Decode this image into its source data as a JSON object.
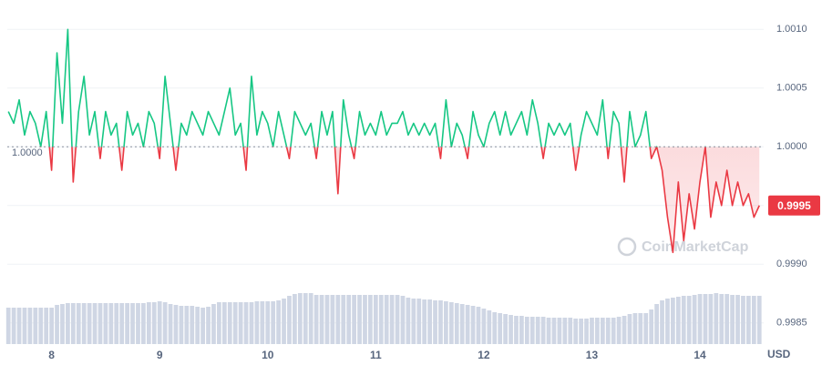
{
  "chart_data": {
    "type": "line",
    "x": [
      7.6,
      7.65,
      7.7,
      7.75,
      7.8,
      7.85,
      7.9,
      7.95,
      8.0,
      8.05,
      8.1,
      8.15,
      8.2,
      8.25,
      8.3,
      8.35,
      8.4,
      8.45,
      8.5,
      8.55,
      8.6,
      8.65,
      8.7,
      8.75,
      8.8,
      8.85,
      8.9,
      8.95,
      9.0,
      9.05,
      9.1,
      9.15,
      9.2,
      9.25,
      9.3,
      9.35,
      9.4,
      9.45,
      9.5,
      9.55,
      9.6,
      9.65,
      9.7,
      9.75,
      9.8,
      9.85,
      9.9,
      9.95,
      10.0,
      10.05,
      10.1,
      10.15,
      10.2,
      10.25,
      10.3,
      10.35,
      10.4,
      10.45,
      10.5,
      10.55,
      10.6,
      10.65,
      10.7,
      10.75,
      10.8,
      10.85,
      10.9,
      10.95,
      11.0,
      11.05,
      11.1,
      11.15,
      11.2,
      11.25,
      11.3,
      11.35,
      11.4,
      11.45,
      11.5,
      11.55,
      11.6,
      11.65,
      11.7,
      11.75,
      11.8,
      11.85,
      11.9,
      11.95,
      12.0,
      12.05,
      12.1,
      12.15,
      12.2,
      12.25,
      12.3,
      12.35,
      12.4,
      12.45,
      12.5,
      12.55,
      12.6,
      12.65,
      12.7,
      12.75,
      12.8,
      12.85,
      12.9,
      12.95,
      13.0,
      13.05,
      13.1,
      13.15,
      13.2,
      13.25,
      13.3,
      13.35,
      13.4,
      13.45,
      13.5,
      13.55,
      13.6,
      13.65,
      13.7,
      13.75,
      13.8,
      13.85,
      13.9,
      13.95,
      14.0,
      14.05,
      14.1,
      14.15,
      14.2,
      14.25,
      14.3,
      14.35,
      14.4,
      14.45,
      14.5,
      14.55
    ],
    "values": [
      1.0003,
      1.0002,
      1.0004,
      1.0001,
      1.0003,
      1.0002,
      1.0,
      1.0003,
      0.9998,
      1.0008,
      1.0002,
      1.001,
      0.9997,
      1.0003,
      1.0006,
      1.0001,
      1.0003,
      0.9999,
      1.0003,
      1.0001,
      1.0002,
      0.9998,
      1.0003,
      1.0001,
      1.0002,
      1.0,
      1.0003,
      1.0002,
      0.9999,
      1.0006,
      1.0002,
      0.9998,
      1.0002,
      1.0001,
      1.0003,
      1.0002,
      1.0001,
      1.0003,
      1.0002,
      1.0001,
      1.0003,
      1.0005,
      1.0001,
      1.0002,
      0.9998,
      1.0006,
      1.0001,
      1.0003,
      1.0002,
      1.0,
      1.0003,
      1.0001,
      0.9999,
      1.0003,
      1.0002,
      1.0001,
      1.0002,
      0.9999,
      1.0003,
      1.0001,
      1.0003,
      0.9996,
      1.0004,
      1.0001,
      0.9999,
      1.0003,
      1.0001,
      1.0002,
      1.0001,
      1.0003,
      1.0001,
      1.0002,
      1.0002,
      1.0003,
      1.0001,
      1.0002,
      1.0001,
      1.0002,
      1.0001,
      1.0002,
      0.9999,
      1.0004,
      1.0,
      1.0002,
      1.0001,
      0.9999,
      1.0003,
      1.0001,
      1.0,
      1.0002,
      1.0003,
      1.0001,
      1.0003,
      1.0001,
      1.0002,
      1.0003,
      1.0001,
      1.0004,
      1.0002,
      0.9999,
      1.0002,
      1.0001,
      1.0002,
      1.0001,
      1.0002,
      0.9998,
      1.0001,
      1.0003,
      1.0002,
      1.0001,
      1.0004,
      0.9999,
      1.0003,
      1.0002,
      0.9997,
      1.0003,
      1.0,
      1.0001,
      1.0003,
      0.9999,
      1.0,
      0.9998,
      0.9994,
      0.9991,
      0.9997,
      0.9992,
      0.9996,
      0.9993,
      0.9997,
      1.0,
      0.9994,
      0.9997,
      0.9995,
      0.9998,
      0.9995,
      0.9997,
      0.9995,
      0.9996,
      0.9994,
      0.9995
    ],
    "volume": [
      40,
      40,
      40,
      40,
      40,
      40,
      40,
      40,
      40,
      43,
      44,
      45,
      45,
      45,
      45,
      45,
      45,
      45,
      45,
      45,
      45,
      45,
      45,
      45,
      45,
      45,
      46,
      46,
      47,
      46,
      44,
      43,
      42,
      42,
      42,
      41,
      40,
      41,
      44,
      46,
      46,
      46,
      46,
      46,
      46,
      46,
      47,
      47,
      47,
      47,
      48,
      50,
      53,
      55,
      56,
      56,
      56,
      54,
      54,
      54,
      54,
      54,
      54,
      54,
      54,
      54,
      54,
      54,
      54,
      54,
      54,
      54,
      54,
      53,
      51,
      50,
      50,
      49,
      49,
      48,
      48,
      47,
      46,
      45,
      44,
      43,
      42,
      41,
      39,
      37,
      35,
      34,
      33,
      32,
      31,
      31,
      30,
      30,
      30,
      30,
      29,
      29,
      29,
      29,
      29,
      28,
      28,
      28,
      29,
      29,
      29,
      29,
      29,
      30,
      31,
      33,
      34,
      34,
      34,
      38,
      44,
      48,
      50,
      51,
      52,
      53,
      53,
      54,
      55,
      55,
      55,
      56,
      55,
      55,
      54,
      54,
      53,
      53,
      53,
      53
    ],
    "up_color": "#16c784",
    "down_color": "#ea3943",
    "volume_color": "#cfd6e4",
    "xlim": [
      7.59,
      14.59
    ],
    "xticks": [
      8,
      9,
      10,
      11,
      12,
      13,
      14
    ],
    "ylim": [
      0.99832,
      1.00125
    ],
    "yticks": [
      {
        "value": 0.9985,
        "label": "0.9985"
      },
      {
        "value": 0.999,
        "label": "0.9990"
      },
      {
        "value": 0.9995,
        "label": "0.9995"
      },
      {
        "value": 1.0,
        "label": "1.0000"
      },
      {
        "value": 1.0005,
        "label": "1.0005"
      },
      {
        "value": 1.001,
        "label": "1.0010"
      }
    ],
    "grid": true,
    "baseline": 1.0,
    "baseline_label": "1.0000",
    "last_price_label": "0.9995",
    "unit_label": "USD",
    "watermark": "CoinMarketCap"
  }
}
